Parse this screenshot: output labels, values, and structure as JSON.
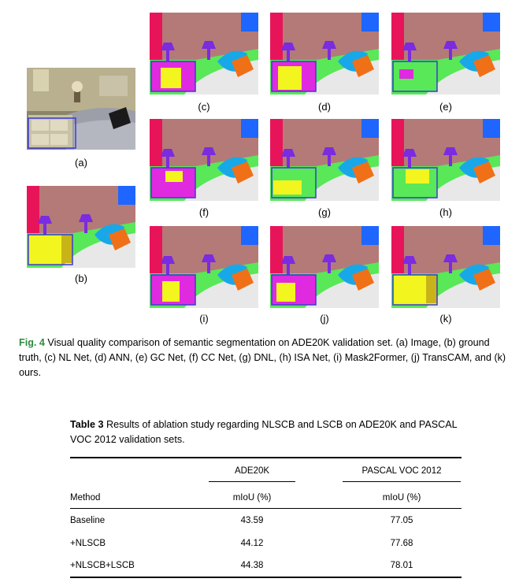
{
  "figure": {
    "panels": [
      {
        "id": "a",
        "label": "(a)",
        "kind": "photo"
      },
      {
        "id": "b",
        "label": "(b)",
        "kind": "seg"
      },
      {
        "id": "c",
        "label": "(c)",
        "kind": "seg"
      },
      {
        "id": "d",
        "label": "(d)",
        "kind": "seg"
      },
      {
        "id": "e",
        "label": "(e)",
        "kind": "seg"
      },
      {
        "id": "f",
        "label": "(f)",
        "kind": "seg"
      },
      {
        "id": "g",
        "label": "(g)",
        "kind": "seg"
      },
      {
        "id": "h",
        "label": "(h)",
        "kind": "seg"
      },
      {
        "id": "i",
        "label": "(i)",
        "kind": "seg"
      },
      {
        "id": "j",
        "label": "(j)",
        "kind": "seg"
      },
      {
        "id": "k",
        "label": "(k)",
        "kind": "seg"
      }
    ],
    "caption_lead": "Fig. 4",
    "caption_text": "Visual quality comparison of semantic segmentation on ADE20K validation set. (a) Image, (b) ground truth, (c) NL Net, (d) ANN, (e) GC Net, (f) CC Net, (g) DNL, (h) ISA Net, (i) Mask2Former, (j) TransCAM, and (k) ours."
  },
  "table": {
    "title_lead": "Table 3",
    "title_text": "Results of ablation study regarding NLSCB and LSCB on ADE20K and PASCAL VOC 2012 validation sets.",
    "group_headers": [
      "ADE20K",
      "PASCAL VOC 2012"
    ],
    "columns": [
      "Method",
      "mIoU (%)",
      "mIoU (%)"
    ],
    "rows": [
      [
        "Baseline",
        "43.59",
        "77.05"
      ],
      [
        "+NLSCB",
        "44.12",
        "77.68"
      ],
      [
        "+NLSCB+LSCB",
        "44.38",
        "78.01"
      ]
    ]
  },
  "colors": {
    "caption_accent": "#2b8a3e",
    "wall": "#b47a78",
    "curtain": "#e8145a",
    "lamp": "#7b2be0",
    "bed": "#e8e8e8",
    "pillow_cyan": "#18a8e8",
    "pillow_orange": "#f07018",
    "window_blue": "#1e66ff",
    "plant_green": "#58e858",
    "furniture_magenta": "#e02ae0",
    "yellow": "#f2f51e",
    "bbox": "#3a3ad0"
  }
}
